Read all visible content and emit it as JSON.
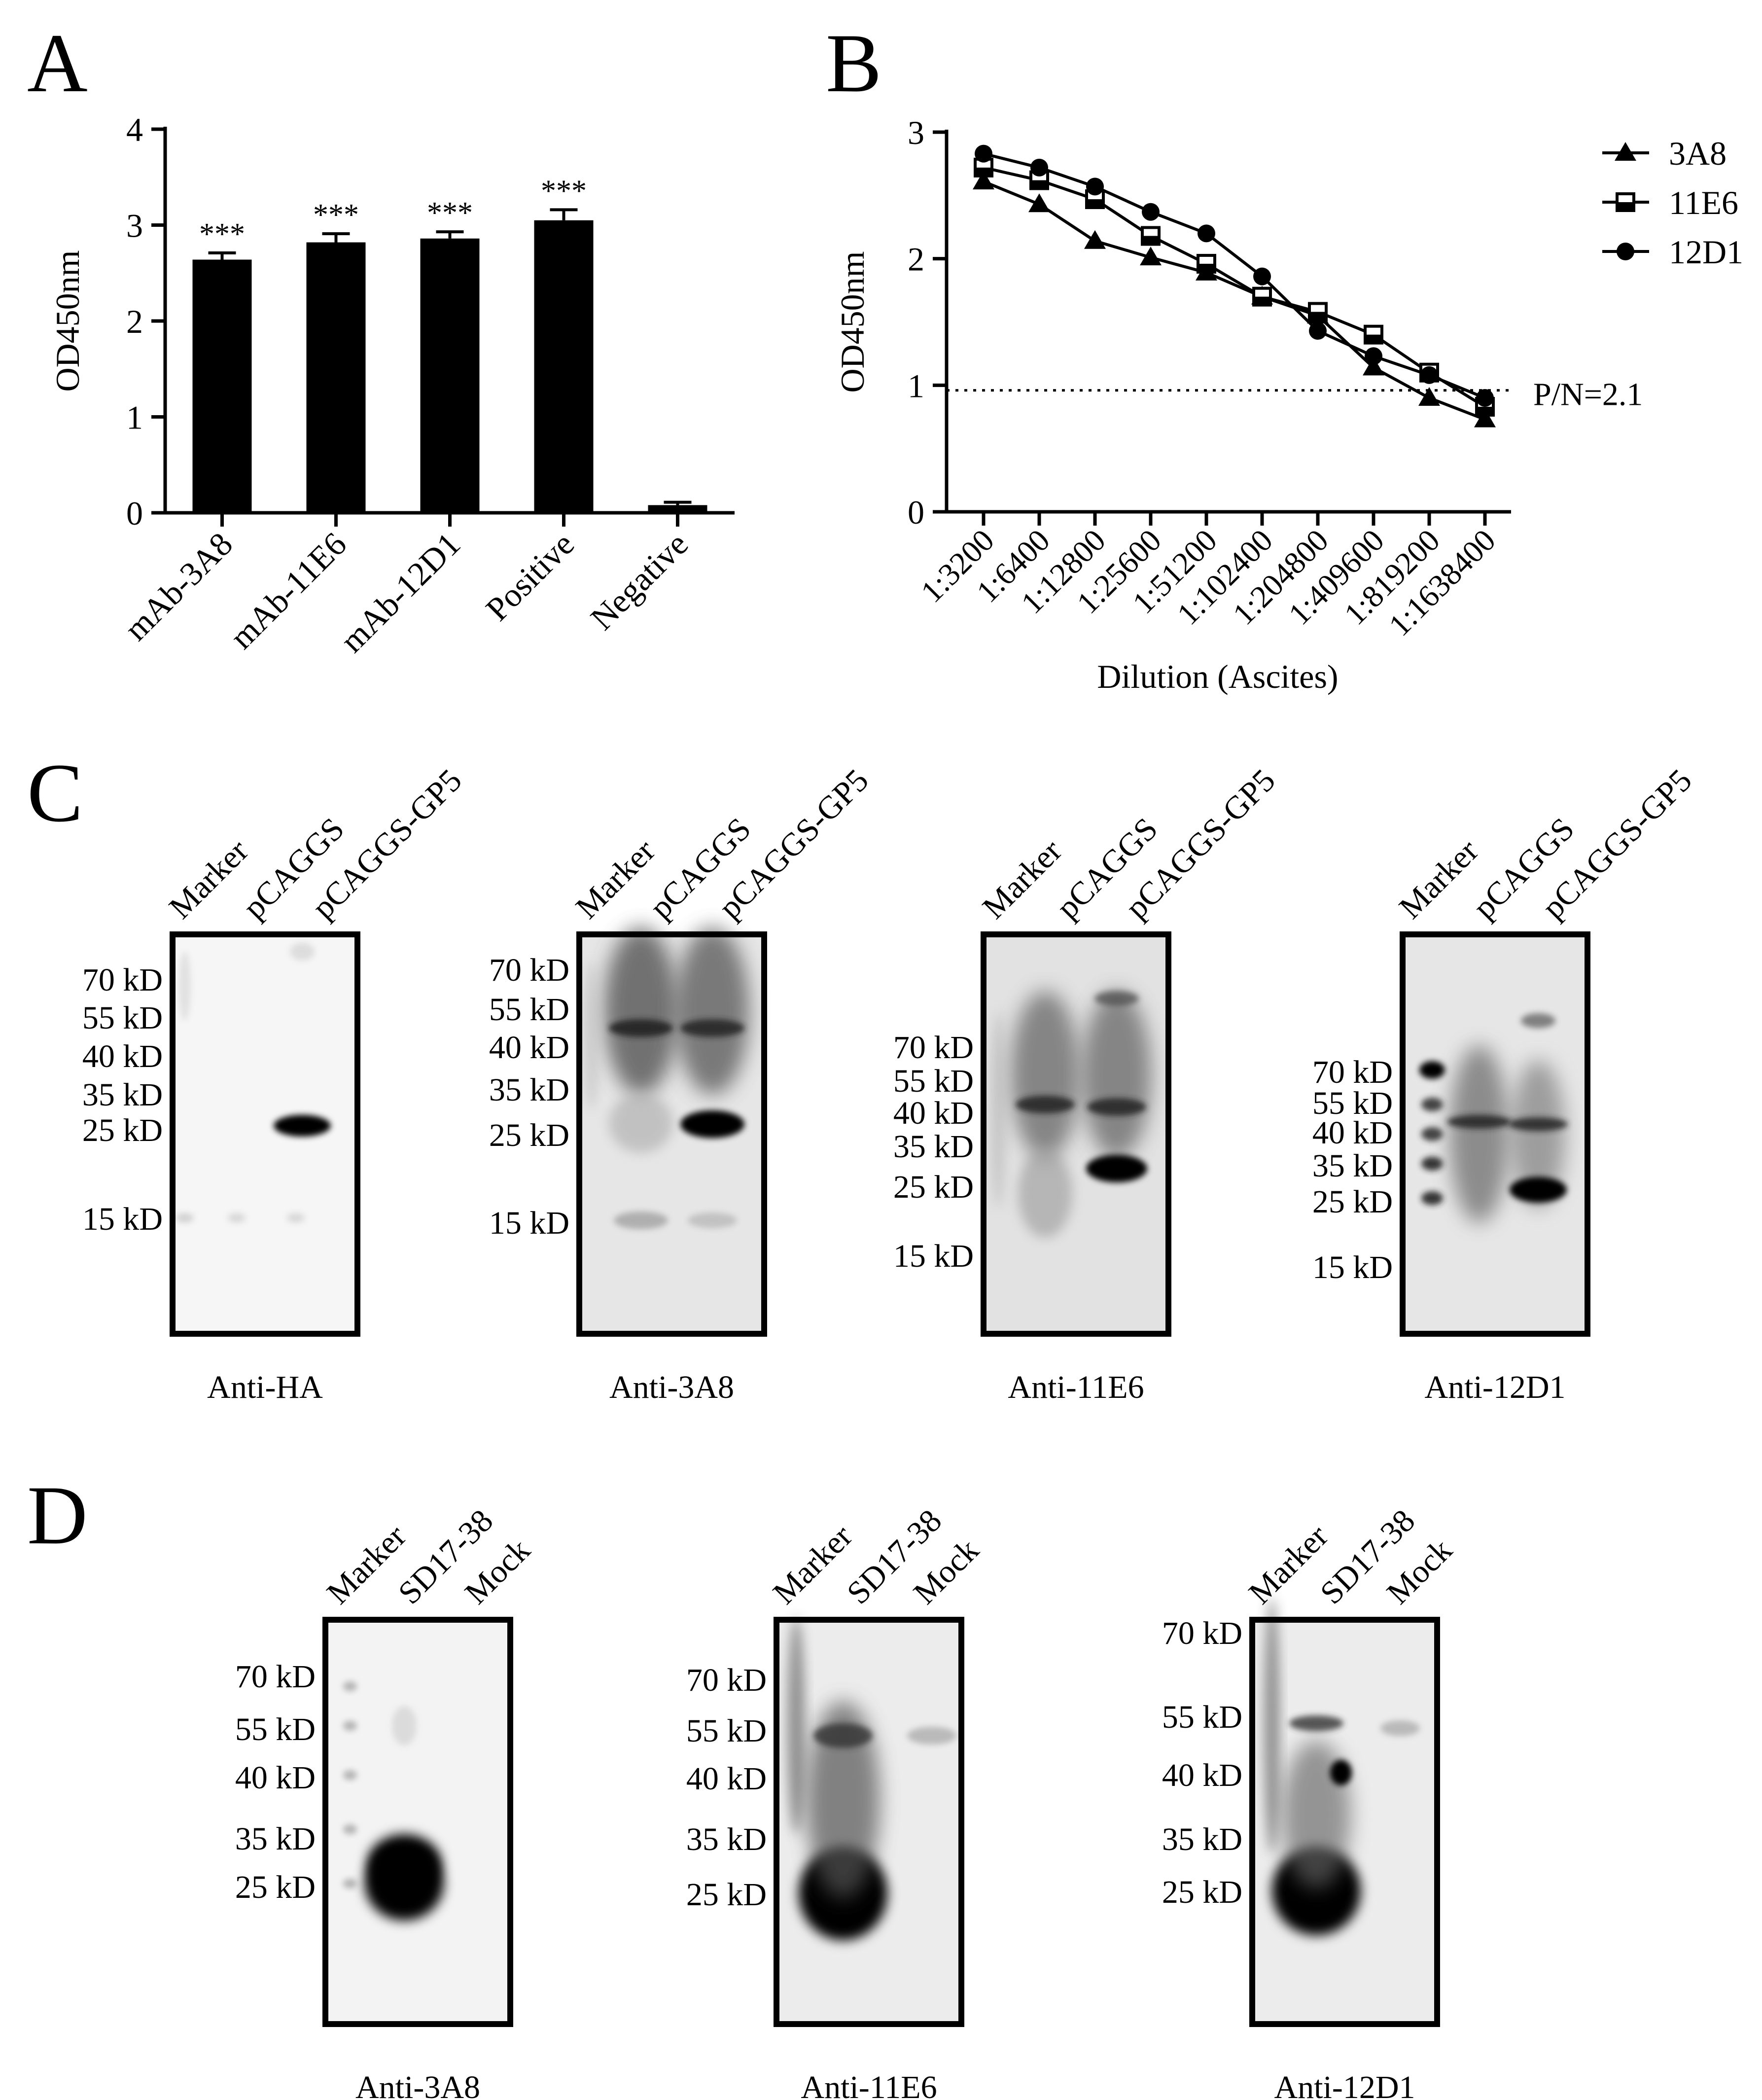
{
  "panel_letters": {
    "a": "A",
    "b": "B",
    "c": "C",
    "d": "D"
  },
  "chart_data": [
    {
      "panel": "A",
      "type": "bar",
      "categories": [
        "mAb-3A8",
        "mAb-11E6",
        "mAb-12D1",
        "Positive",
        "Negative"
      ],
      "values": [
        2.64,
        2.82,
        2.86,
        3.05,
        0.08
      ],
      "errors": [
        0.07,
        0.09,
        0.07,
        0.11,
        0.03
      ],
      "significance": [
        "***",
        "***",
        "***",
        "***",
        ""
      ],
      "ylabel": "OD450nm",
      "xlabel": "",
      "ylim": [
        0,
        4
      ],
      "yticks": [
        0,
        1,
        2,
        3,
        4
      ],
      "bar_color": "#000000",
      "grid": false
    },
    {
      "panel": "B",
      "type": "line",
      "categories": [
        "1:3200",
        "1:6400",
        "1:12800",
        "1:25600",
        "1:51200",
        "1:102400",
        "1:204800",
        "1:409600",
        "1:819200",
        "1:1638400"
      ],
      "series": [
        {
          "name": "3A8",
          "marker": "triangle",
          "values": [
            2.61,
            2.43,
            2.14,
            2.01,
            1.89,
            1.7,
            1.55,
            1.14,
            0.9,
            0.73
          ]
        },
        {
          "name": "11E6",
          "marker": "square-half",
          "values": [
            2.72,
            2.62,
            2.47,
            2.18,
            1.96,
            1.7,
            1.58,
            1.4,
            1.1,
            0.83
          ]
        },
        {
          "name": "12D1",
          "marker": "circle",
          "values": [
            2.83,
            2.72,
            2.57,
            2.37,
            2.2,
            1.86,
            1.43,
            1.23,
            1.08,
            0.9
          ]
        }
      ],
      "ylabel": "OD450nm",
      "xlabel": "Dilution (Ascites)",
      "ylim": [
        0,
        3
      ],
      "yticks": [
        0,
        1,
        2,
        3
      ],
      "reference_line": {
        "y": 0.96,
        "label": "P/N=2.1",
        "style": "dotted"
      },
      "legend_position": "top-right",
      "grid": false
    }
  ],
  "western_blots": {
    "C": [
      {
        "lanes": [
          "Marker",
          "pCAGGS",
          "pCAGGS-GP5"
        ],
        "markers": [
          "70 kD",
          "55 kD",
          "40 kD",
          "35 kD",
          "25 kD",
          "15 kD"
        ],
        "caption": "Anti-HA"
      },
      {
        "lanes": [
          "Marker",
          "pCAGGS",
          "pCAGGS-GP5"
        ],
        "markers": [
          "70 kD",
          "55 kD",
          "40 kD",
          "35 kD",
          "25 kD",
          "15 kD"
        ],
        "caption": "Anti-3A8"
      },
      {
        "lanes": [
          "Marker",
          "pCAGGS",
          "pCAGGS-GP5"
        ],
        "markers": [
          "70 kD",
          "55 kD",
          "40 kD",
          "35 kD",
          "25 kD",
          "15 kD"
        ],
        "caption": "Anti-11E6"
      },
      {
        "lanes": [
          "Marker",
          "pCAGGS",
          "pCAGGS-GP5"
        ],
        "markers": [
          "70 kD",
          "55 kD",
          "40 kD",
          "35 kD",
          "25 kD",
          "15 kD"
        ],
        "caption": "Anti-12D1"
      }
    ],
    "D": [
      {
        "lanes": [
          "Marker",
          "SD17-38",
          "Mock"
        ],
        "markers": [
          "70 kD",
          "55 kD",
          "40 kD",
          "35 kD",
          "25 kD"
        ],
        "caption": "Anti-3A8"
      },
      {
        "lanes": [
          "Marker",
          "SD17-38",
          "Mock"
        ],
        "markers": [
          "70 kD",
          "55 kD",
          "40 kD",
          "35 kD",
          "25 kD"
        ],
        "caption": "Anti-11E6"
      },
      {
        "lanes": [
          "Marker",
          "SD17-38",
          "Mock"
        ],
        "markers": [
          "70 kD",
          "55 kD",
          "40 kD",
          "35 kD",
          "25 kD"
        ],
        "caption": "Anti-12D1"
      }
    ]
  }
}
